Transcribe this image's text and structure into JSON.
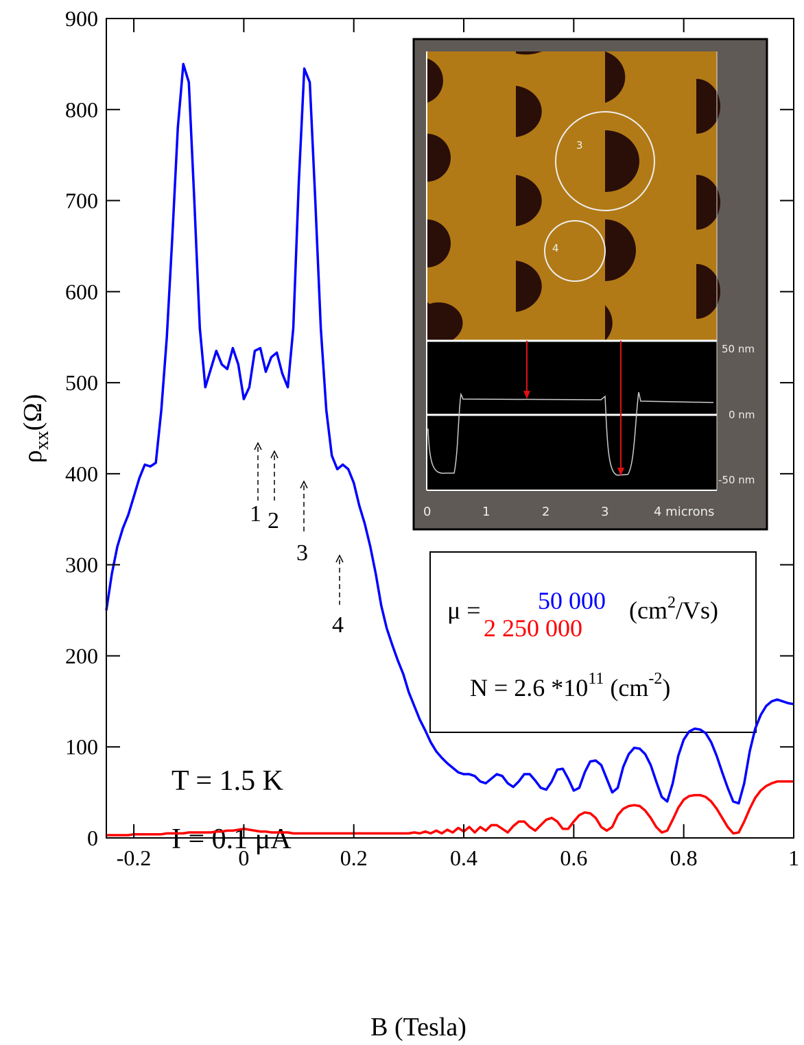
{
  "chart_data": {
    "type": "line",
    "x_label": "B (Tesla)",
    "y_label": "ρ",
    "y_label_sub": "xx",
    "y_label_unit": "(Ω)",
    "xlim": [
      -0.25,
      1
    ],
    "ylim": [
      0,
      900
    ],
    "xticks": [
      -0.2,
      0,
      0.2,
      0.4,
      0.6,
      0.8,
      1
    ],
    "yticks": [
      0,
      100,
      200,
      300,
      400,
      500,
      600,
      700,
      800,
      900
    ],
    "x": [
      -0.25,
      -0.24,
      -0.23,
      -0.22,
      -0.21,
      -0.2,
      -0.19,
      -0.18,
      -0.17,
      -0.16,
      -0.15,
      -0.14,
      -0.13,
      -0.12,
      -0.11,
      -0.1,
      -0.09,
      -0.08,
      -0.07,
      -0.06,
      -0.05,
      -0.04,
      -0.03,
      -0.02,
      -0.01,
      0,
      0.01,
      0.02,
      0.03,
      0.04,
      0.05,
      0.06,
      0.07,
      0.08,
      0.09,
      0.1,
      0.11,
      0.12,
      0.13,
      0.14,
      0.15,
      0.16,
      0.17,
      0.18,
      0.19,
      0.2,
      0.21,
      0.22,
      0.23,
      0.24,
      0.25,
      0.26,
      0.27,
      0.28,
      0.29,
      0.3,
      0.31,
      0.32,
      0.33,
      0.34,
      0.35,
      0.36,
      0.37,
      0.38,
      0.39,
      0.4,
      0.41,
      0.42,
      0.43,
      0.44,
      0.45,
      0.46,
      0.47,
      0.48,
      0.49,
      0.5,
      0.51,
      0.52,
      0.53,
      0.54,
      0.55,
      0.56,
      0.57,
      0.58,
      0.59,
      0.6,
      0.61,
      0.62,
      0.63,
      0.64,
      0.65,
      0.66,
      0.67,
      0.68,
      0.69,
      0.7,
      0.71,
      0.72,
      0.73,
      0.74,
      0.75,
      0.76,
      0.77,
      0.78,
      0.79,
      0.8,
      0.81,
      0.82,
      0.83,
      0.84,
      0.85,
      0.86,
      0.87,
      0.88,
      0.89,
      0.9,
      0.91,
      0.92,
      0.93,
      0.94,
      0.95,
      0.96,
      0.97,
      0.98,
      0.99,
      1
    ],
    "series": [
      {
        "color": "#0000ff",
        "values": [
          250,
          290,
          320,
          340,
          355,
          375,
          395,
          410,
          408,
          412,
          470,
          550,
          660,
          780,
          850,
          830,
          700,
          560,
          495,
          515,
          535,
          520,
          515,
          538,
          520,
          482,
          495,
          535,
          538,
          512,
          528,
          533,
          510,
          495,
          560,
          720,
          845,
          830,
          700,
          560,
          470,
          420,
          405,
          410,
          405,
          390,
          365,
          345,
          320,
          290,
          255,
          230,
          212,
          195,
          180,
          160,
          145,
          130,
          118,
          105,
          95,
          88,
          82,
          77,
          72,
          70,
          70,
          68,
          62,
          60,
          65,
          70,
          68,
          60,
          56,
          62,
          70,
          70,
          63,
          55,
          53,
          62,
          75,
          76,
          65,
          52,
          55,
          72,
          84,
          85,
          80,
          65,
          50,
          55,
          78,
          92,
          99,
          98,
          92,
          80,
          62,
          45,
          40,
          60,
          90,
          108,
          117,
          120,
          119,
          115,
          105,
          90,
          72,
          55,
          40,
          38,
          60,
          95,
          120,
          135,
          145,
          150,
          152,
          150,
          148,
          147
        ]
      },
      {
        "color": "#ff0000",
        "values": [
          3,
          3,
          3,
          3,
          3,
          4,
          4,
          4,
          4,
          4,
          4,
          5,
          5,
          5,
          5,
          6,
          6,
          6,
          6,
          6,
          7,
          7,
          8,
          8,
          9,
          10,
          9,
          8,
          7,
          7,
          6,
          6,
          6,
          6,
          5,
          5,
          5,
          5,
          5,
          5,
          5,
          5,
          5,
          5,
          5,
          5,
          5,
          5,
          5,
          5,
          5,
          5,
          5,
          5,
          5,
          5,
          6,
          5,
          7,
          5,
          8,
          5,
          9,
          6,
          11,
          7,
          12,
          6,
          12,
          8,
          14,
          14,
          10,
          6,
          13,
          18,
          18,
          12,
          8,
          14,
          20,
          22,
          18,
          10,
          10,
          18,
          25,
          28,
          27,
          22,
          12,
          8,
          12,
          25,
          32,
          35,
          36,
          35,
          30,
          22,
          12,
          6,
          8,
          20,
          33,
          42,
          46,
          47,
          47,
          45,
          40,
          32,
          22,
          12,
          5,
          6,
          18,
          32,
          44,
          52,
          57,
          60,
          62,
          62,
          62,
          62
        ]
      }
    ],
    "annotations": {
      "temperature": "T = 1.5 K",
      "current": "I = 0.1 μA",
      "arrow_labels": [
        "1",
        "2",
        "3",
        "4"
      ]
    },
    "info_box": {
      "mu_prefix": "μ =",
      "mu_blue": "50 000",
      "mu_red": "2 250 000",
      "mu_unit_a": "(cm",
      "mu_unit_sup": "2",
      "mu_unit_b": "/Vs)",
      "n_prefix": "N = 2.6 *10",
      "n_sup": "11",
      "n_unit_a": " (cm",
      "n_unit_sup": "-2",
      "n_unit_b": ")"
    }
  },
  "inset": {
    "circle_labels": [
      "3",
      "4"
    ],
    "profile_labels": [
      "50 nm",
      "0 nm",
      "-50 nm"
    ],
    "axis_labels": [
      "0",
      "1",
      "2",
      "3",
      "4 microns"
    ]
  }
}
